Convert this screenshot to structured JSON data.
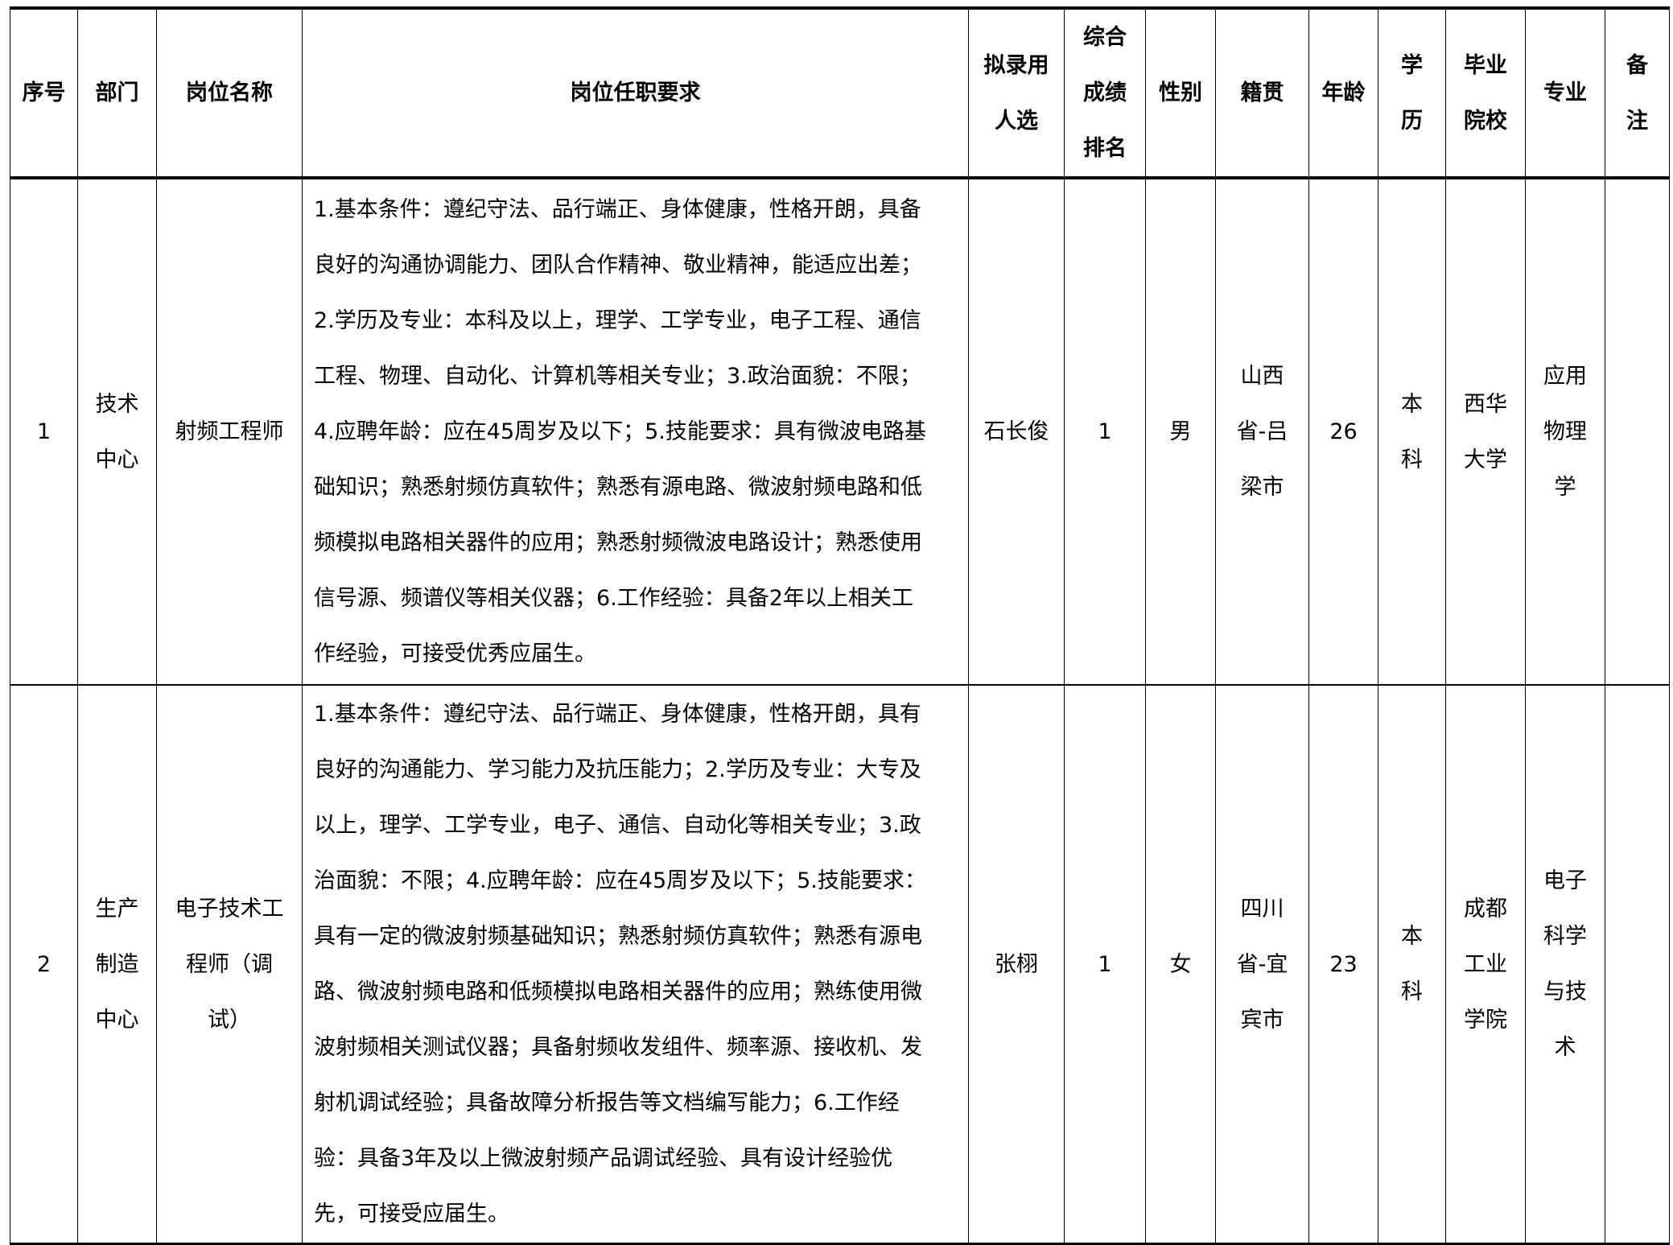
{
  "headers": [
    "序号",
    "部门",
    "岗位名称",
    "岗位任职要求",
    "拟录用\n人选",
    "综合\n成绩\n排名",
    "性别",
    "籍贯",
    "年龄",
    "学\n历",
    "毕业\n院校",
    "专业",
    "备\n注"
  ],
  "rows": [
    {
      "no": "1",
      "dept": "技术\n中心",
      "position": "射频工程师",
      "requirements": "1.基本条件：遵纪守法、品行端正、身体健康，性格开朗，具备\n良好的沟通协调能力、团队合作精神、敬业精神，能适应出差；\n2.学历及专业：本科及以上，理学、工学专业，电子工程、通信\n工程、物理、自动化、计算机等相关专业；3.政治面貌：不限；\n4.应聘年龄：应在45周岁及以下；5.技能要求：具有微波电路基\n础知识；熟悉射频仿真软件；熟悉有源电路、微波射频电路和低\n频模拟电路相关器件的应用；熟悉射频微波电路设计；熟悉使用\n信号源、频谱仪等相关仪器；6.工作经验：具备2年以上相关工\n作经验，可接受优秀应届生。",
      "candidate": "石长俊",
      "rank": "1",
      "gender": "男",
      "origin": "山西\n省-吕\n梁市",
      "age": "26",
      "education": "本\n科",
      "school": "西华\n大学",
      "major": "应用\n物理\n学",
      "remark": ""
    },
    {
      "no": "2",
      "dept": "生产\n制造\n中心",
      "position": "电子技术工\n程师（调\n试）",
      "requirements": "1.基本条件：遵纪守法、品行端正、身体健康，性格开朗，具有\n良好的沟通能力、学习能力及抗压能力；2.学历及专业：大专及\n以上，理学、工学专业，电子、通信、自动化等相关专业；3.政\n治面貌：不限；4.应聘年龄：应在45周岁及以下；5.技能要求：\n具有一定的微波射频基础知识；熟悉射频仿真软件；熟悉有源电\n路、微波射频电路和低频模拟电路相关器件的应用；熟练使用微\n波射频相关测试仪器；具备射频收发组件、频率源、接收机、发\n射机调试经验；具备故障分析报告等文档编写能力；6.工作经\n验：具备3年及以上微波射频产品调试经验、具有设计经验优\n先，可接受应届生。",
      "candidate": "张栩",
      "rank": "1",
      "gender": "女",
      "origin": "四川\n省-宜\n宾市",
      "age": "23",
      "education": "本\n科",
      "school": "成都\n工业\n学院",
      "major": "电子\n科学\n与技\n术",
      "remark": ""
    }
  ]
}
